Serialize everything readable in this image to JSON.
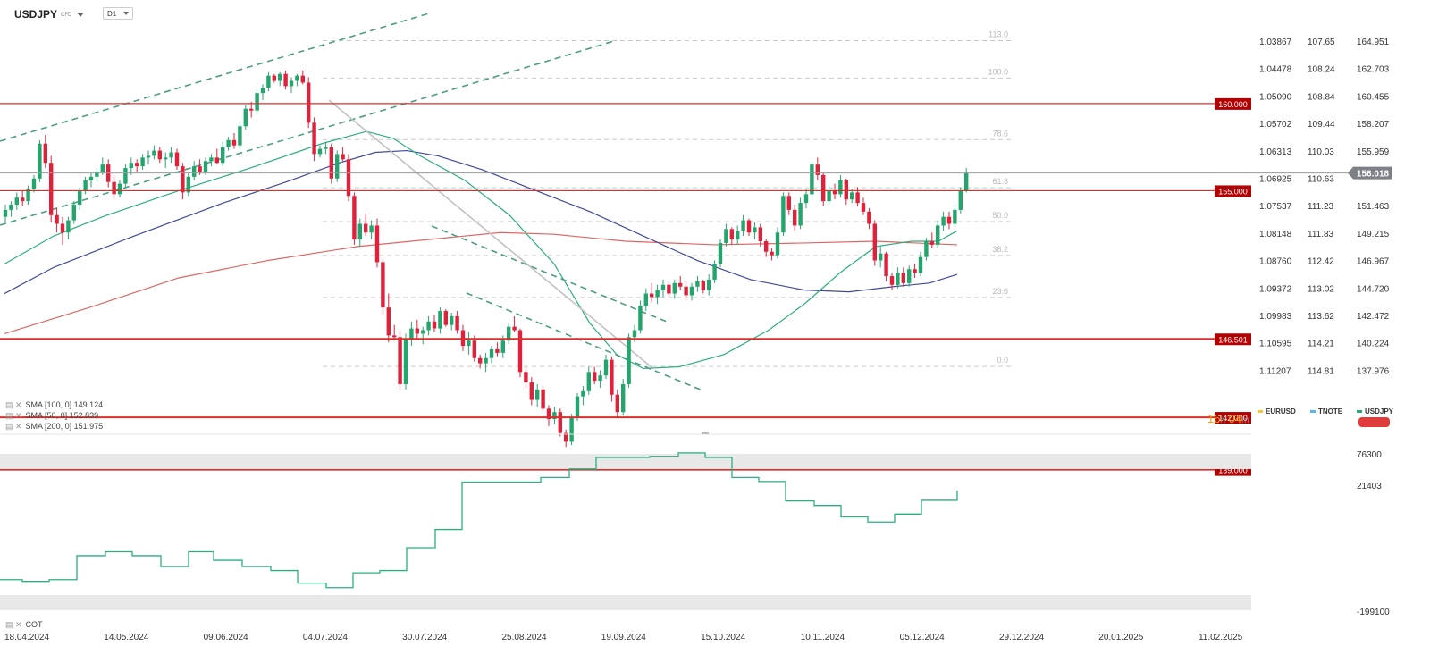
{
  "header": {
    "symbol": "USDJPY",
    "instrument_type": "CFD",
    "timeframe": "D1"
  },
  "chart_data": [
    {
      "type": "candlestick",
      "symbol": "USDJPY",
      "x_tick_labels": [
        "18.04.2024",
        "14.05.2024",
        "09.06.2024",
        "04.07.2024",
        "30.07.2024",
        "25.08.2024",
        "19.09.2024",
        "15.10.2024",
        "10.11.2024",
        "05.12.2024",
        "29.12.2024",
        "20.01.2025",
        "11.02.2025"
      ],
      "ylim": [
        137.2,
        165.9
      ],
      "y_axis_ticks": [
        164.951,
        162.703,
        160.455,
        158.207,
        155.959,
        153.711,
        151.463,
        149.215,
        146.967,
        144.72,
        142.472,
        140.224,
        137.976
      ],
      "secondary_axis_eurusd": [
        "1.03867",
        "1.04478",
        "1.05090",
        "1.05702",
        "1.06313",
        "1.06925",
        "1.07537",
        "1.08148",
        "1.08760",
        "1.09372",
        "1.09983",
        "1.10595",
        "1.11207"
      ],
      "secondary_axis_tnote": [
        "107.65",
        "108.24",
        "108.84",
        "109.44",
        "110.03",
        "110.63",
        "111.23",
        "111.83",
        "112.42",
        "113.02",
        "113.62",
        "114.21",
        "114.81"
      ],
      "current_price": "156.018",
      "horizontal_levels": [
        "160.000",
        "155.000",
        "146.501",
        "142.000",
        "139.000"
      ],
      "fibonacci": {
        "labels": [
          "113.0",
          "100.0",
          "78.6",
          "61.8",
          "50.0",
          "38.2",
          "23.6",
          "0.0"
        ],
        "prices": [
          163.61,
          161.46,
          157.93,
          155.17,
          153.23,
          151.29,
          148.88,
          144.92
        ]
      },
      "candles_ohlc": [
        [
          153.5,
          154.2,
          153.1,
          153.9
        ],
        [
          153.9,
          154.4,
          153.5,
          154.2
        ],
        [
          154.2,
          154.9,
          153.9,
          154.6
        ],
        [
          154.6,
          155.0,
          154.1,
          154.4
        ],
        [
          154.4,
          155.3,
          154.2,
          155.1
        ],
        [
          155.1,
          155.9,
          154.9,
          155.7
        ],
        [
          155.7,
          157.9,
          155.5,
          157.7
        ],
        [
          157.7,
          158.2,
          156.3,
          156.6
        ],
        [
          156.6,
          157.0,
          153.2,
          153.6
        ],
        [
          153.6,
          154.0,
          152.6,
          153.1
        ],
        [
          153.1,
          153.5,
          151.9,
          152.6
        ],
        [
          152.6,
          153.5,
          152.2,
          153.3
        ],
        [
          153.3,
          154.4,
          153.1,
          154.2
        ],
        [
          154.2,
          155.2,
          153.9,
          155.0
        ],
        [
          155.0,
          155.8,
          154.8,
          155.6
        ],
        [
          155.6,
          156.0,
          155.2,
          155.8
        ],
        [
          155.8,
          156.3,
          155.5,
          156.1
        ],
        [
          156.1,
          156.9,
          155.9,
          156.5
        ],
        [
          156.5,
          156.8,
          155.2,
          155.5
        ],
        [
          155.5,
          155.9,
          154.5,
          154.8
        ],
        [
          154.8,
          155.6,
          154.6,
          155.4
        ],
        [
          155.4,
          156.5,
          155.2,
          156.3
        ],
        [
          156.3,
          156.9,
          155.9,
          156.6
        ],
        [
          156.6,
          156.8,
          156.1,
          156.4
        ],
        [
          156.4,
          157.1,
          156.2,
          156.9
        ],
        [
          156.9,
          157.3,
          156.5,
          157.0
        ],
        [
          157.0,
          157.6,
          156.8,
          157.3
        ],
        [
          157.3,
          157.5,
          156.6,
          156.8
        ],
        [
          156.8,
          157.2,
          156.3,
          156.9
        ],
        [
          156.9,
          157.5,
          156.6,
          157.2
        ],
        [
          157.2,
          157.4,
          156.2,
          156.4
        ],
        [
          156.4,
          156.6,
          154.5,
          154.9
        ],
        [
          154.9,
          156.0,
          154.7,
          155.8
        ],
        [
          155.8,
          156.7,
          155.6,
          156.4
        ],
        [
          156.4,
          156.8,
          155.9,
          156.1
        ],
        [
          156.1,
          156.9,
          155.9,
          156.7
        ],
        [
          156.7,
          157.1,
          156.4,
          156.9
        ],
        [
          156.9,
          157.4,
          156.5,
          156.6
        ],
        [
          156.6,
          157.8,
          156.4,
          157.5
        ],
        [
          157.5,
          158.1,
          157.3,
          157.9
        ],
        [
          157.9,
          158.3,
          157.4,
          157.6
        ],
        [
          157.6,
          158.9,
          157.4,
          158.7
        ],
        [
          158.7,
          159.9,
          158.5,
          159.7
        ],
        [
          159.7,
          160.1,
          159.2,
          159.6
        ],
        [
          159.6,
          160.8,
          159.4,
          160.6
        ],
        [
          160.6,
          161.1,
          160.2,
          160.9
        ],
        [
          160.9,
          161.8,
          160.7,
          161.6
        ],
        [
          161.6,
          161.7,
          161.2,
          161.3
        ],
        [
          161.3,
          161.8,
          161.0,
          161.7
        ],
        [
          161.7,
          161.9,
          160.8,
          161.0
        ],
        [
          161.0,
          161.5,
          160.6,
          161.3
        ],
        [
          161.3,
          161.7,
          161.0,
          161.6
        ],
        [
          161.6,
          161.9,
          161.1,
          161.2
        ],
        [
          161.2,
          161.5,
          158.6,
          158.9
        ],
        [
          158.9,
          159.2,
          156.7,
          157.1
        ],
        [
          157.1,
          157.6,
          156.9,
          157.4
        ],
        [
          157.4,
          157.8,
          157.1,
          157.5
        ],
        [
          157.5,
          157.7,
          155.4,
          155.7
        ],
        [
          155.7,
          157.3,
          155.5,
          157.1
        ],
        [
          157.1,
          157.5,
          156.7,
          156.8
        ],
        [
          156.8,
          157.1,
          154.4,
          154.7
        ],
        [
          154.7,
          154.9,
          151.9,
          152.2
        ],
        [
          152.2,
          153.4,
          151.8,
          153.1
        ],
        [
          153.1,
          153.7,
          152.4,
          152.6
        ],
        [
          152.6,
          153.3,
          152.2,
          153.0
        ],
        [
          153.0,
          153.4,
          150.6,
          150.9
        ],
        [
          150.9,
          151.1,
          147.9,
          148.3
        ],
        [
          148.3,
          149.1,
          146.3,
          146.7
        ],
        [
          146.7,
          147.3,
          146.4,
          146.6
        ],
        [
          146.6,
          147.0,
          143.6,
          143.9
        ],
        [
          143.9,
          146.8,
          143.6,
          146.5
        ],
        [
          146.5,
          147.5,
          146.1,
          147.1
        ],
        [
          147.1,
          147.6,
          146.5,
          146.8
        ],
        [
          146.8,
          147.2,
          146.2,
          147.0
        ],
        [
          147.0,
          147.8,
          146.7,
          147.5
        ],
        [
          147.5,
          147.9,
          146.9,
          147.1
        ],
        [
          147.1,
          148.3,
          146.8,
          148.1
        ],
        [
          148.1,
          148.2,
          147.2,
          147.3
        ],
        [
          147.3,
          148.0,
          147.0,
          147.8
        ],
        [
          147.8,
          148.1,
          146.8,
          147.0
        ],
        [
          147.0,
          147.3,
          145.8,
          146.1
        ],
        [
          146.1,
          146.9,
          145.6,
          146.4
        ],
        [
          146.4,
          146.7,
          145.2,
          145.4
        ],
        [
          145.4,
          145.6,
          144.8,
          145.1
        ],
        [
          145.1,
          145.7,
          144.6,
          145.4
        ],
        [
          145.4,
          146.1,
          145.1,
          145.9
        ],
        [
          145.9,
          146.3,
          145.5,
          145.7
        ],
        [
          145.7,
          146.7,
          145.4,
          146.4
        ],
        [
          146.4,
          147.4,
          146.2,
          147.2
        ],
        [
          147.2,
          147.8,
          146.9,
          147.0
        ],
        [
          147.0,
          147.1,
          144.3,
          144.6
        ],
        [
          144.6,
          144.9,
          143.7,
          144.0
        ],
        [
          144.0,
          144.3,
          142.7,
          143.0
        ],
        [
          143.0,
          143.9,
          142.6,
          143.6
        ],
        [
          143.6,
          143.8,
          142.3,
          142.5
        ],
        [
          142.5,
          142.7,
          141.5,
          141.9
        ],
        [
          141.9,
          142.6,
          141.6,
          142.3
        ],
        [
          142.3,
          142.5,
          140.9,
          141.1
        ],
        [
          141.1,
          141.3,
          140.3,
          140.6
        ],
        [
          140.6,
          142.2,
          140.4,
          142.0
        ],
        [
          142.0,
          143.4,
          141.8,
          143.2
        ],
        [
          143.2,
          143.8,
          142.7,
          143.5
        ],
        [
          143.5,
          144.9,
          143.3,
          144.6
        ],
        [
          144.6,
          144.9,
          143.9,
          144.1
        ],
        [
          144.1,
          144.7,
          143.7,
          144.4
        ],
        [
          144.4,
          145.6,
          144.2,
          145.3
        ],
        [
          145.3,
          145.5,
          142.9,
          143.3
        ],
        [
          143.3,
          143.6,
          142.0,
          142.3
        ],
        [
          142.3,
          144.2,
          142.1,
          143.9
        ],
        [
          143.9,
          146.8,
          143.7,
          146.6
        ],
        [
          146.6,
          147.3,
          146.3,
          147.0
        ],
        [
          147.0,
          148.7,
          146.8,
          148.4
        ],
        [
          148.4,
          149.4,
          148.1,
          149.1
        ],
        [
          149.1,
          149.7,
          148.6,
          148.9
        ],
        [
          148.9,
          149.6,
          148.5,
          149.3
        ],
        [
          149.3,
          149.9,
          148.9,
          149.6
        ],
        [
          149.6,
          149.8,
          148.9,
          149.1
        ],
        [
          149.1,
          149.9,
          148.8,
          149.7
        ],
        [
          149.7,
          150.1,
          149.3,
          149.5
        ],
        [
          149.5,
          149.8,
          148.7,
          149.0
        ],
        [
          149.0,
          149.7,
          148.7,
          149.5
        ],
        [
          149.5,
          150.1,
          149.2,
          149.8
        ],
        [
          149.8,
          149.9,
          149.1,
          149.3
        ],
        [
          149.3,
          150.2,
          149.0,
          149.9
        ],
        [
          149.9,
          151.0,
          149.7,
          150.8
        ],
        [
          150.8,
          152.2,
          150.6,
          152.0
        ],
        [
          152.0,
          153.1,
          151.8,
          152.8
        ],
        [
          152.8,
          152.9,
          151.9,
          152.2
        ],
        [
          152.2,
          153.0,
          151.9,
          152.7
        ],
        [
          152.7,
          153.6,
          152.4,
          153.3
        ],
        [
          153.3,
          153.4,
          152.4,
          152.6
        ],
        [
          152.6,
          153.2,
          152.2,
          152.9
        ],
        [
          152.9,
          153.1,
          151.8,
          152.1
        ],
        [
          152.1,
          152.2,
          151.2,
          151.5
        ],
        [
          151.5,
          151.7,
          151.0,
          151.3
        ],
        [
          151.3,
          152.9,
          151.1,
          152.6
        ],
        [
          152.6,
          154.9,
          152.4,
          154.7
        ],
        [
          154.7,
          154.9,
          153.6,
          153.9
        ],
        [
          153.9,
          154.2,
          152.7,
          153.0
        ],
        [
          153.0,
          154.6,
          152.8,
          154.3
        ],
        [
          154.3,
          155.1,
          154.0,
          154.8
        ],
        [
          154.8,
          156.7,
          154.6,
          156.5
        ],
        [
          156.5,
          156.9,
          155.6,
          155.9
        ],
        [
          155.9,
          156.1,
          154.1,
          154.4
        ],
        [
          154.4,
          155.3,
          154.2,
          155.0
        ],
        [
          155.0,
          155.4,
          154.5,
          154.8
        ],
        [
          154.8,
          155.9,
          154.6,
          155.6
        ],
        [
          155.6,
          155.7,
          154.2,
          154.5
        ],
        [
          154.5,
          155.1,
          154.3,
          154.9
        ],
        [
          154.9,
          155.2,
          154.1,
          154.3
        ],
        [
          154.3,
          154.6,
          153.6,
          153.8
        ],
        [
          153.8,
          154.0,
          152.8,
          153.1
        ],
        [
          153.1,
          153.3,
          150.7,
          151.0
        ],
        [
          151.0,
          151.8,
          150.6,
          151.4
        ],
        [
          151.4,
          151.5,
          149.8,
          150.1
        ],
        [
          150.1,
          150.3,
          149.3,
          149.6
        ],
        [
          149.6,
          150.6,
          149.4,
          150.3
        ],
        [
          150.3,
          150.6,
          149.5,
          149.7
        ],
        [
          149.7,
          150.7,
          149.5,
          150.5
        ],
        [
          150.5,
          150.8,
          150.0,
          150.3
        ],
        [
          150.3,
          151.5,
          150.1,
          151.2
        ],
        [
          151.2,
          152.3,
          151.0,
          152.1
        ],
        [
          152.1,
          152.6,
          151.7,
          151.9
        ],
        [
          151.9,
          153.3,
          151.7,
          153.0
        ],
        [
          153.0,
          153.8,
          152.7,
          153.5
        ],
        [
          153.5,
          153.8,
          152.8,
          153.1
        ],
        [
          153.1,
          154.2,
          152.9,
          153.9
        ],
        [
          153.9,
          155.2,
          153.7,
          155.0
        ],
        [
          155.0,
          156.3,
          154.9,
          156.0
        ]
      ]
    },
    {
      "type": "line",
      "title": "COT",
      "y_axis_ticks": [
        76300,
        21403,
        -199100
      ],
      "x": [
        0,
        25,
        55,
        86,
        118,
        148,
        180,
        211,
        239,
        271,
        303,
        333,
        365,
        395,
        425,
        455,
        487,
        517,
        545,
        575,
        605,
        637,
        667,
        697,
        727,
        759,
        789,
        819,
        849,
        879,
        911,
        941,
        971,
        1001,
        1031,
        1071
      ],
      "y": [
        -144000,
        -147000,
        -144000,
        -102000,
        -95000,
        -102000,
        -121000,
        -95000,
        -110000,
        -121000,
        -128000,
        -150000,
        -158000,
        -132000,
        -128000,
        -88000,
        -56000,
        27000,
        27000,
        27000,
        35000,
        50000,
        70000,
        70000,
        72000,
        78000,
        70000,
        35000,
        28000,
        -6000,
        -14000,
        -34000,
        -43000,
        -29000,
        -5000,
        12000
      ]
    }
  ],
  "indicators": [
    {
      "text": "SMA [100, 0] 149.124",
      "color": "#3f4a9c"
    },
    {
      "text": "SMA [50, 0] 152.839",
      "color": "#2cae82"
    },
    {
      "text": "SMA [200, 0] 151.975",
      "color": "#e06565"
    }
  ],
  "countdown": {
    "hours": "16",
    "h_unit": "h",
    "minutes": "04",
    "m_unit": "m"
  },
  "comparisons": [
    {
      "label": "EURUSD",
      "color": "#f5c242"
    },
    {
      "label": "TNOTE",
      "color": "#5bb8e6"
    },
    {
      "label": "USDJPY",
      "color": "#2aa876"
    }
  ],
  "colors": {
    "up": "#24a56e",
    "down": "#e0213b",
    "level": "#d9302c",
    "level_label_bg": "#b40000",
    "price_tag": "#7d8085"
  }
}
